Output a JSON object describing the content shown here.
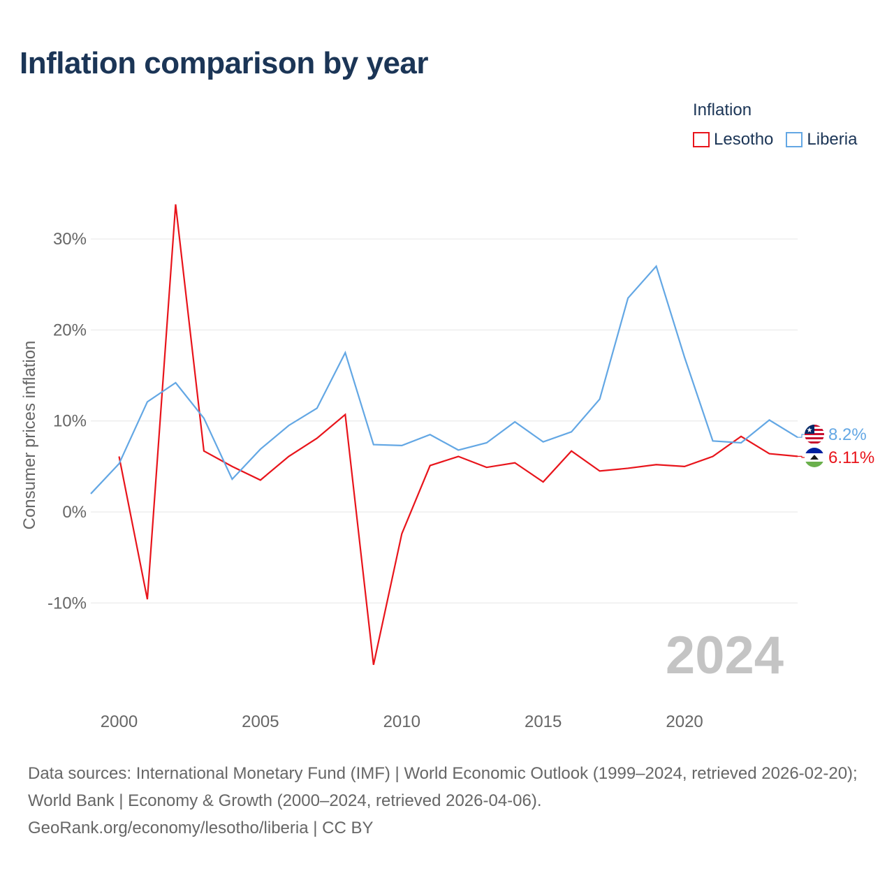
{
  "title": "Inflation comparison by year",
  "legend": {
    "title": "Inflation",
    "items": [
      {
        "label": "Lesotho",
        "color": "#e8141b"
      },
      {
        "label": "Liberia",
        "color": "#63a7e4"
      }
    ]
  },
  "year_label": "2024",
  "footer": {
    "sources": "Data sources: International Monetary Fund (IMF) | World Economic Outlook (1999–2024, retrieved 2026-02-20); World Bank | Economy & Growth (2000–2024, retrieved 2026-04-06).",
    "credit": "GeoRank.org/economy/lesotho/liberia | CC BY"
  },
  "chart_data": {
    "type": "line",
    "title": "Inflation comparison by year",
    "xlabel": "",
    "ylabel": "Consumer prices inflation",
    "xlim": [
      1999,
      2024
    ],
    "ylim": [
      -20,
      35
    ],
    "x_ticks": [
      2000,
      2005,
      2010,
      2015,
      2020
    ],
    "x_tick_labels": [
      "2000",
      "2005",
      "2010",
      "2015",
      "2020"
    ],
    "y_ticks": [
      -10,
      0,
      10,
      20,
      30
    ],
    "y_tick_labels": [
      "-10%",
      "0%",
      "10%",
      "20%",
      "30%"
    ],
    "grid": true,
    "legend_position": "top-right",
    "series": [
      {
        "name": "Lesotho",
        "color": "#e8141b",
        "x": [
          2000,
          2001,
          2002,
          2003,
          2004,
          2005,
          2006,
          2007,
          2008,
          2009,
          2010,
          2011,
          2012,
          2013,
          2014,
          2015,
          2016,
          2017,
          2018,
          2019,
          2020,
          2021,
          2022,
          2023,
          2024
        ],
        "values": [
          6.1,
          -9.6,
          33.8,
          6.7,
          5.0,
          3.5,
          6.1,
          8.1,
          10.7,
          -16.8,
          -2.4,
          5.1,
          6.1,
          4.9,
          5.4,
          3.3,
          6.7,
          4.5,
          4.8,
          5.2,
          5.0,
          6.1,
          8.3,
          6.4,
          6.11
        ],
        "end_label": "6.11%"
      },
      {
        "name": "Liberia",
        "color": "#63a7e4",
        "x": [
          1999,
          2000,
          2001,
          2002,
          2003,
          2004,
          2005,
          2006,
          2007,
          2008,
          2009,
          2010,
          2011,
          2012,
          2013,
          2014,
          2015,
          2016,
          2017,
          2018,
          2019,
          2020,
          2021,
          2022,
          2023,
          2024
        ],
        "values": [
          2.0,
          5.3,
          12.1,
          14.2,
          10.3,
          3.6,
          6.9,
          9.5,
          11.4,
          17.5,
          7.4,
          7.3,
          8.5,
          6.8,
          7.6,
          9.9,
          7.7,
          8.8,
          12.4,
          23.5,
          27.0,
          17.0,
          7.8,
          7.6,
          10.1,
          8.2
        ],
        "end_label": "8.2%"
      }
    ]
  }
}
